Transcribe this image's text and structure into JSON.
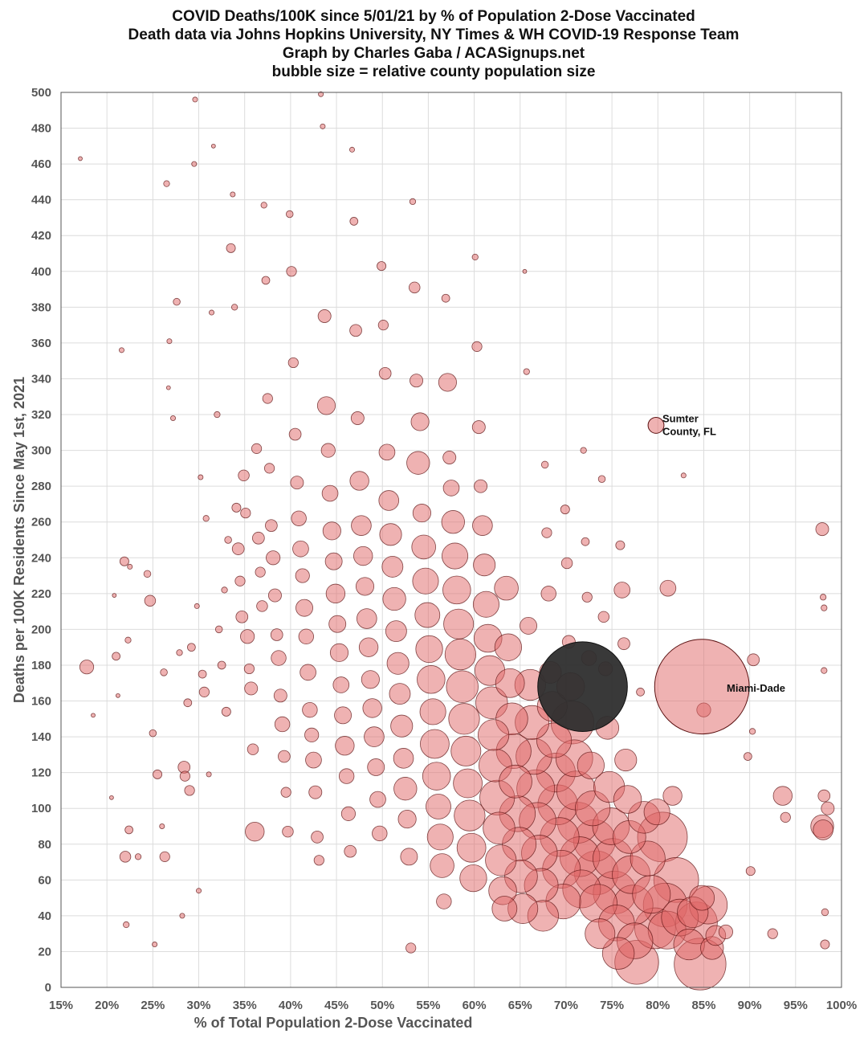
{
  "chart_data": {
    "type": "scatter",
    "title_lines": [
      "COVID Deaths/100K since 5/01/21 by % of Population 2-Dose Vaccinated",
      "Death data via Johns Hopkins University, NY Times & WH COVID-19 Response Team",
      "Graph by Charles Gaba / ACASignups.net",
      "bubble size = relative county population size"
    ],
    "xlabel": "% of Total Population 2-Dose Vaccinated",
    "ylabel": "Deaths per 100K Residents Since May 1st, 2021",
    "xlim": [
      15,
      100
    ],
    "ylim": [
      0,
      500
    ],
    "x_ticks": [
      15,
      20,
      25,
      30,
      35,
      40,
      45,
      50,
      55,
      60,
      65,
      70,
      75,
      80,
      85,
      90,
      95,
      100
    ],
    "x_tick_labels": [
      "15%",
      "20%",
      "25%",
      "30%",
      "35%",
      "40%",
      "45%",
      "50%",
      "55%",
      "60%",
      "65%",
      "70%",
      "75%",
      "80%",
      "85%",
      "90%",
      "95%",
      "100%"
    ],
    "y_ticks": [
      0,
      20,
      40,
      60,
      80,
      100,
      120,
      140,
      160,
      180,
      200,
      220,
      240,
      260,
      280,
      300,
      320,
      340,
      360,
      380,
      400,
      420,
      440,
      460,
      480,
      500
    ],
    "grid": true,
    "bubble_color": "#e06666",
    "bubble_edge": "#5a1010",
    "highlight_color": "#2e2e2e",
    "annotations": [
      {
        "text_lines": [
          "Sumter",
          "County, FL"
        ],
        "x": 80.5,
        "y": 314
      },
      {
        "text_lines": [
          "Miami-Dade"
        ],
        "x": 87.5,
        "y": 167
      }
    ],
    "highlight_points": [
      {
        "x": 71.8,
        "y": 168,
        "size": 9
      },
      {
        "x": 84.8,
        "y": 168,
        "size": 9.5,
        "style": "normal"
      },
      {
        "x": 79.8,
        "y": 314,
        "size": 1.6,
        "style": "normal"
      }
    ],
    "points": [
      [
        17.1,
        463,
        0.4
      ],
      [
        17.8,
        179,
        1.4
      ],
      [
        18.5,
        152,
        0.4
      ],
      [
        20.5,
        106,
        0.4
      ],
      [
        20.8,
        219,
        0.4
      ],
      [
        21.0,
        185,
        0.8
      ],
      [
        21.2,
        163,
        0.4
      ],
      [
        21.6,
        356,
        0.5
      ],
      [
        21.9,
        238,
        0.9
      ],
      [
        22.0,
        73,
        1.1
      ],
      [
        22.1,
        35,
        0.6
      ],
      [
        22.3,
        194,
        0.6
      ],
      [
        22.4,
        88,
        0.8
      ],
      [
        22.5,
        235,
        0.5
      ],
      [
        23.4,
        73,
        0.6
      ],
      [
        24.4,
        231,
        0.7
      ],
      [
        24.7,
        216,
        1.1
      ],
      [
        25.0,
        142,
        0.7
      ],
      [
        25.2,
        24,
        0.5
      ],
      [
        25.5,
        119,
        0.9
      ],
      [
        26.0,
        90,
        0.5
      ],
      [
        26.2,
        176,
        0.7
      ],
      [
        26.3,
        73,
        1.0
      ],
      [
        26.5,
        449,
        0.6
      ],
      [
        26.7,
        335,
        0.4
      ],
      [
        26.8,
        361,
        0.5
      ],
      [
        27.2,
        318,
        0.5
      ],
      [
        27.6,
        383,
        0.7
      ],
      [
        27.9,
        187,
        0.6
      ],
      [
        28.2,
        40,
        0.5
      ],
      [
        28.4,
        123,
        1.2
      ],
      [
        28.5,
        118,
        1.0
      ],
      [
        28.8,
        159,
        0.8
      ],
      [
        29.0,
        110,
        1.0
      ],
      [
        29.2,
        190,
        0.8
      ],
      [
        29.5,
        460,
        0.5
      ],
      [
        29.6,
        496,
        0.5
      ],
      [
        29.8,
        213,
        0.5
      ],
      [
        30.0,
        54,
        0.5
      ],
      [
        30.2,
        285,
        0.5
      ],
      [
        30.4,
        175,
        0.8
      ],
      [
        30.6,
        165,
        1.0
      ],
      [
        30.8,
        262,
        0.6
      ],
      [
        31.1,
        119,
        0.5
      ],
      [
        31.4,
        377,
        0.5
      ],
      [
        31.6,
        470,
        0.4
      ],
      [
        32.0,
        320,
        0.6
      ],
      [
        32.2,
        200,
        0.7
      ],
      [
        32.5,
        180,
        0.8
      ],
      [
        32.8,
        222,
        0.6
      ],
      [
        33.0,
        154,
        0.9
      ],
      [
        33.2,
        250,
        0.7
      ],
      [
        33.5,
        413,
        0.9
      ],
      [
        33.7,
        443,
        0.5
      ],
      [
        33.9,
        380,
        0.6
      ],
      [
        34.1,
        268,
        0.9
      ],
      [
        34.3,
        245,
        1.2
      ],
      [
        34.5,
        227,
        1.0
      ],
      [
        34.7,
        207,
        1.2
      ],
      [
        34.9,
        286,
        1.1
      ],
      [
        35.1,
        265,
        1.0
      ],
      [
        35.3,
        196,
        1.4
      ],
      [
        35.5,
        178,
        1.0
      ],
      [
        35.7,
        167,
        1.3
      ],
      [
        35.9,
        133,
        1.1
      ],
      [
        36.1,
        87,
        1.9
      ],
      [
        36.3,
        301,
        1.0
      ],
      [
        36.5,
        251,
        1.2
      ],
      [
        36.7,
        232,
        1.0
      ],
      [
        36.9,
        213,
        1.1
      ],
      [
        37.1,
        437,
        0.6
      ],
      [
        37.3,
        395,
        0.8
      ],
      [
        37.5,
        329,
        1.0
      ],
      [
        37.7,
        290,
        1.0
      ],
      [
        37.9,
        258,
        1.2
      ],
      [
        38.1,
        240,
        1.4
      ],
      [
        38.3,
        219,
        1.3
      ],
      [
        38.5,
        197,
        1.2
      ],
      [
        38.7,
        184,
        1.5
      ],
      [
        38.9,
        163,
        1.3
      ],
      [
        39.1,
        147,
        1.5
      ],
      [
        39.3,
        129,
        1.2
      ],
      [
        39.5,
        109,
        1.0
      ],
      [
        39.7,
        87,
        1.1
      ],
      [
        39.9,
        432,
        0.7
      ],
      [
        40.1,
        400,
        1.0
      ],
      [
        40.3,
        349,
        1.0
      ],
      [
        40.5,
        309,
        1.2
      ],
      [
        40.7,
        282,
        1.3
      ],
      [
        40.9,
        262,
        1.5
      ],
      [
        41.1,
        245,
        1.6
      ],
      [
        41.3,
        230,
        1.4
      ],
      [
        41.5,
        212,
        1.7
      ],
      [
        41.7,
        196,
        1.5
      ],
      [
        41.9,
        176,
        1.6
      ],
      [
        42.1,
        155,
        1.5
      ],
      [
        42.3,
        141,
        1.4
      ],
      [
        42.5,
        127,
        1.6
      ],
      [
        42.7,
        109,
        1.3
      ],
      [
        42.9,
        84,
        1.2
      ],
      [
        43.1,
        71,
        1.0
      ],
      [
        43.3,
        499,
        0.5
      ],
      [
        43.5,
        481,
        0.5
      ],
      [
        43.7,
        375,
        1.3
      ],
      [
        43.9,
        325,
        1.8
      ],
      [
        44.1,
        300,
        1.4
      ],
      [
        44.3,
        276,
        1.6
      ],
      [
        44.5,
        255,
        1.8
      ],
      [
        44.7,
        238,
        1.7
      ],
      [
        44.9,
        220,
        1.9
      ],
      [
        45.1,
        203,
        1.7
      ],
      [
        45.3,
        187,
        1.8
      ],
      [
        45.5,
        169,
        1.6
      ],
      [
        45.7,
        152,
        1.7
      ],
      [
        45.9,
        135,
        1.9
      ],
      [
        46.1,
        118,
        1.5
      ],
      [
        46.3,
        97,
        1.4
      ],
      [
        46.5,
        76,
        1.2
      ],
      [
        46.7,
        468,
        0.5
      ],
      [
        46.9,
        428,
        0.8
      ],
      [
        47.1,
        367,
        1.2
      ],
      [
        47.3,
        318,
        1.3
      ],
      [
        47.5,
        283,
        1.9
      ],
      [
        47.7,
        258,
        2.0
      ],
      [
        47.9,
        241,
        1.9
      ],
      [
        48.1,
        224,
        1.8
      ],
      [
        48.3,
        206,
        2.0
      ],
      [
        48.5,
        190,
        1.9
      ],
      [
        48.7,
        172,
        1.8
      ],
      [
        48.9,
        156,
        1.9
      ],
      [
        49.1,
        140,
        2.0
      ],
      [
        49.3,
        123,
        1.7
      ],
      [
        49.5,
        105,
        1.6
      ],
      [
        49.7,
        86,
        1.5
      ],
      [
        49.9,
        403,
        0.9
      ],
      [
        50.1,
        370,
        1.0
      ],
      [
        50.3,
        343,
        1.2
      ],
      [
        50.5,
        299,
        1.6
      ],
      [
        50.7,
        272,
        2.0
      ],
      [
        50.9,
        253,
        2.2
      ],
      [
        51.1,
        235,
        2.1
      ],
      [
        51.3,
        217,
        2.3
      ],
      [
        51.5,
        199,
        2.1
      ],
      [
        51.7,
        181,
        2.2
      ],
      [
        51.9,
        164,
        2.1
      ],
      [
        52.1,
        146,
        2.2
      ],
      [
        52.3,
        128,
        2.0
      ],
      [
        52.5,
        111,
        2.3
      ],
      [
        52.7,
        94,
        1.8
      ],
      [
        52.9,
        73,
        1.7
      ],
      [
        53.1,
        22,
        1.0
      ],
      [
        53.3,
        439,
        0.6
      ],
      [
        53.5,
        391,
        1.1
      ],
      [
        53.7,
        339,
        1.3
      ],
      [
        53.9,
        293,
        2.3
      ],
      [
        54.1,
        316,
        1.8
      ],
      [
        54.3,
        265,
        1.8
      ],
      [
        54.5,
        246,
        2.4
      ],
      [
        54.7,
        227,
        2.6
      ],
      [
        54.9,
        208,
        2.5
      ],
      [
        55.1,
        189,
        2.7
      ],
      [
        55.3,
        172,
        2.8
      ],
      [
        55.5,
        154,
        2.6
      ],
      [
        55.7,
        136,
        2.9
      ],
      [
        55.9,
        118,
        2.8
      ],
      [
        56.1,
        101,
        2.5
      ],
      [
        56.3,
        84,
        2.6
      ],
      [
        56.5,
        68,
        2.4
      ],
      [
        56.7,
        48,
        1.5
      ],
      [
        56.9,
        385,
        0.8
      ],
      [
        57.1,
        338,
        1.8
      ],
      [
        57.3,
        296,
        1.3
      ],
      [
        57.5,
        279,
        1.6
      ],
      [
        57.7,
        260,
        2.3
      ],
      [
        57.9,
        241,
        2.6
      ],
      [
        58.1,
        222,
        2.8
      ],
      [
        58.3,
        203,
        3.0
      ],
      [
        58.5,
        186,
        3.1
      ],
      [
        58.7,
        168,
        3.2
      ],
      [
        58.9,
        150,
        3.1
      ],
      [
        59.1,
        132,
        3.0
      ],
      [
        59.3,
        114,
        2.9
      ],
      [
        59.5,
        96,
        3.1
      ],
      [
        59.7,
        78,
        2.9
      ],
      [
        59.9,
        61,
        2.7
      ],
      [
        60.1,
        408,
        0.6
      ],
      [
        60.3,
        358,
        1.0
      ],
      [
        60.5,
        313,
        1.3
      ],
      [
        60.7,
        280,
        1.3
      ],
      [
        60.9,
        258,
        2.0
      ],
      [
        61.1,
        236,
        2.2
      ],
      [
        61.3,
        214,
        2.6
      ],
      [
        61.5,
        195,
        2.8
      ],
      [
        61.7,
        177,
        3.0
      ],
      [
        61.9,
        159,
        3.2
      ],
      [
        62.1,
        141,
        3.1
      ],
      [
        62.3,
        124,
        3.3
      ],
      [
        62.5,
        106,
        3.5
      ],
      [
        62.7,
        89,
        3.2
      ],
      [
        62.9,
        71,
        3.1
      ],
      [
        63.1,
        54,
        2.8
      ],
      [
        63.3,
        44,
        2.5
      ],
      [
        63.5,
        223,
        2.4
      ],
      [
        63.7,
        190,
        2.7
      ],
      [
        63.9,
        170,
        2.9
      ],
      [
        64.1,
        150,
        3.2
      ],
      [
        64.3,
        132,
        3.5
      ],
      [
        64.5,
        115,
        3.3
      ],
      [
        64.7,
        97,
        3.6
      ],
      [
        64.9,
        80,
        3.4
      ],
      [
        65.1,
        62,
        3.3
      ],
      [
        65.3,
        44,
        3.0
      ],
      [
        65.5,
        400,
        0.4
      ],
      [
        65.7,
        344,
        0.6
      ],
      [
        65.9,
        202,
        1.7
      ],
      [
        66.1,
        169,
        3.1
      ],
      [
        66.3,
        148,
        3.4
      ],
      [
        66.5,
        129,
        3.6
      ],
      [
        66.7,
        111,
        3.8
      ],
      [
        66.9,
        93,
        3.7
      ],
      [
        67.1,
        75,
        3.6
      ],
      [
        67.3,
        57,
        3.4
      ],
      [
        67.5,
        40,
        3.1
      ],
      [
        67.7,
        292,
        0.7
      ],
      [
        67.9,
        254,
        1.0
      ],
      [
        68.1,
        220,
        1.5
      ],
      [
        68.3,
        176,
        2.2
      ],
      [
        68.5,
        157,
        3.0
      ],
      [
        68.7,
        138,
        3.5
      ],
      [
        68.9,
        120,
        3.9
      ],
      [
        69.1,
        102,
        4.0
      ],
      [
        69.3,
        84,
        3.9
      ],
      [
        69.5,
        66,
        3.8
      ],
      [
        69.7,
        48,
        3.5
      ],
      [
        69.9,
        267,
        0.9
      ],
      [
        70.1,
        237,
        1.1
      ],
      [
        70.3,
        193,
        1.3
      ],
      [
        70.5,
        168,
        2.8
      ],
      [
        70.7,
        148,
        4.3
      ],
      [
        70.9,
        128,
        3.7
      ],
      [
        71.1,
        110,
        3.9
      ],
      [
        71.3,
        92,
        4.1
      ],
      [
        71.5,
        73,
        4.0
      ],
      [
        71.7,
        55,
        3.8
      ],
      [
        71.9,
        300,
        0.6
      ],
      [
        72.1,
        249,
        0.8
      ],
      [
        72.3,
        218,
        1.0
      ],
      [
        72.5,
        184,
        1.5
      ],
      [
        72.7,
        124,
        2.7
      ],
      [
        72.9,
        100,
        3.5
      ],
      [
        73.1,
        82,
        4.2
      ],
      [
        73.3,
        64,
        4.4
      ],
      [
        73.5,
        47,
        3.8
      ],
      [
        73.7,
        30,
        3.0
      ],
      [
        73.9,
        284,
        0.7
      ],
      [
        74.1,
        207,
        1.1
      ],
      [
        74.3,
        178,
        1.4
      ],
      [
        74.5,
        145,
        2.3
      ],
      [
        74.7,
        112,
        3.1
      ],
      [
        74.9,
        90,
        3.7
      ],
      [
        75.1,
        72,
        4.0
      ],
      [
        75.3,
        53,
        4.3
      ],
      [
        75.5,
        36,
        3.6
      ],
      [
        75.7,
        19,
        3.2
      ],
      [
        75.9,
        247,
        0.9
      ],
      [
        76.1,
        222,
        1.6
      ],
      [
        76.3,
        192,
        1.2
      ],
      [
        76.5,
        127,
        2.2
      ],
      [
        76.7,
        105,
        2.8
      ],
      [
        76.9,
        84,
        3.3
      ],
      [
        77.1,
        63,
        3.8
      ],
      [
        77.3,
        46,
        4.0
      ],
      [
        77.5,
        26,
        3.6
      ],
      [
        77.7,
        14,
        4.4
      ],
      [
        78.1,
        165,
        0.8
      ],
      [
        78.5,
        95,
        3.2
      ],
      [
        78.9,
        72,
        3.5
      ],
      [
        79.3,
        52,
        3.8
      ],
      [
        79.7,
        33,
        4.1
      ],
      [
        79.9,
        98,
        2.6
      ],
      [
        80.5,
        84,
        5.0
      ],
      [
        80.8,
        46,
        4.4
      ],
      [
        81.0,
        32,
        3.8
      ],
      [
        81.1,
        223,
        1.6
      ],
      [
        81.6,
        107,
        1.9
      ],
      [
        82.0,
        60,
        4.5
      ],
      [
        82.4,
        39,
        3.7
      ],
      [
        82.8,
        286,
        0.5
      ],
      [
        83.4,
        24,
        3.1
      ],
      [
        83.8,
        42,
        3.1
      ],
      [
        84.2,
        36,
        4.2
      ],
      [
        84.6,
        13,
        5.2
      ],
      [
        84.8,
        50,
        2.5
      ],
      [
        85.0,
        155,
        1.4
      ],
      [
        85.5,
        46,
        3.8
      ],
      [
        85.9,
        22,
        2.3
      ],
      [
        86.3,
        29,
        2.0
      ],
      [
        87.4,
        31,
        1.4
      ],
      [
        89.8,
        129,
        0.8
      ],
      [
        90.1,
        65,
        0.9
      ],
      [
        90.3,
        143,
        0.6
      ],
      [
        90.4,
        183,
        1.2
      ],
      [
        92.5,
        30,
        1.0
      ],
      [
        93.6,
        107,
        1.9
      ],
      [
        93.9,
        95,
        1.0
      ],
      [
        97.9,
        256,
        1.3
      ],
      [
        97.9,
        90,
        2.3
      ],
      [
        98.0,
        88,
        2.0
      ],
      [
        98.1,
        107,
        1.2
      ],
      [
        98.0,
        218,
        0.6
      ],
      [
        98.1,
        212,
        0.6
      ],
      [
        98.1,
        177,
        0.6
      ],
      [
        98.2,
        42,
        0.7
      ],
      [
        98.2,
        24,
        0.9
      ],
      [
        98.5,
        100,
        1.3
      ]
    ]
  }
}
